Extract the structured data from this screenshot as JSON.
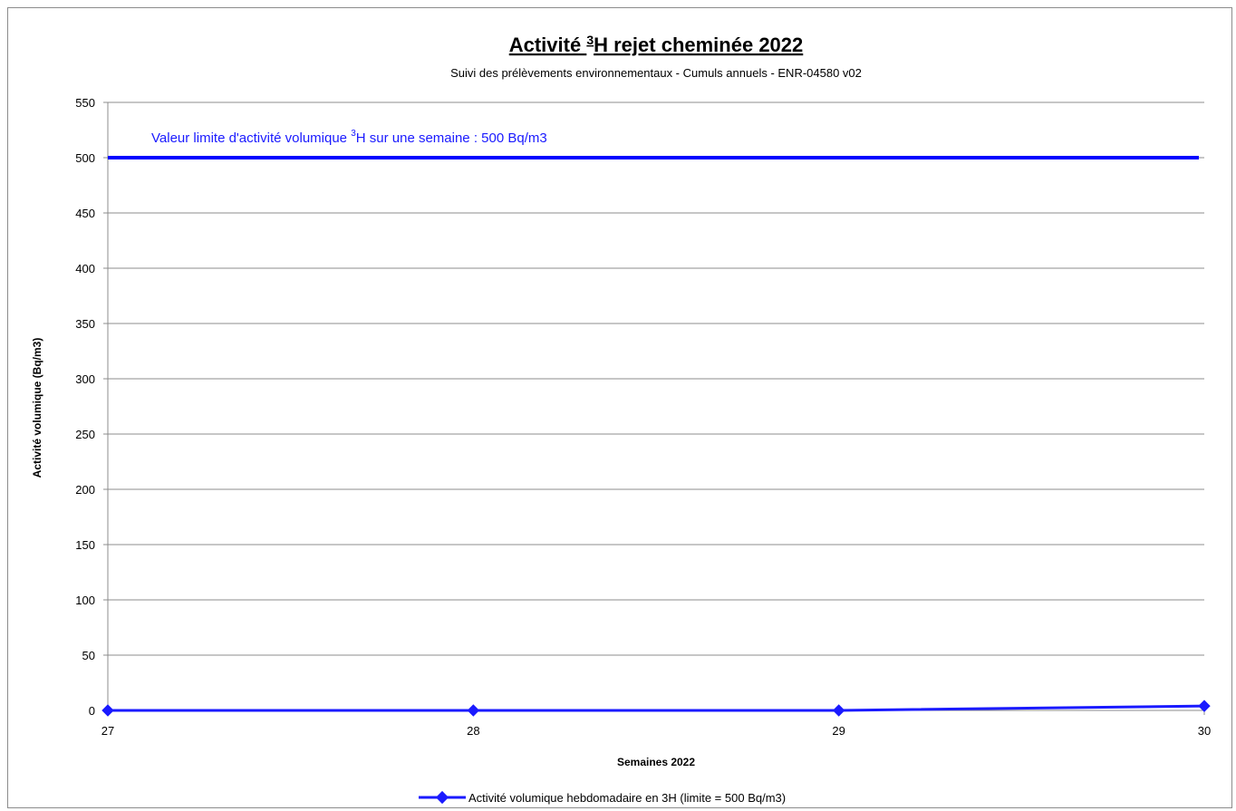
{
  "chart_data": {
    "type": "line",
    "title_main": "Activité ",
    "title_sup": "3",
    "title_rest": "H rejet cheminée 2022",
    "subtitle": "Suivi des prélèvements environnementaux - Cumuls annuels - ENR-04580 v02",
    "xlabel": "Semaines 2022",
    "ylabel": "Activité volumique (Bq/m3)",
    "xlim": [
      27,
      30
    ],
    "ylim": [
      0,
      550
    ],
    "x_ticks": [
      "27",
      "28",
      "29",
      "30"
    ],
    "y_ticks": [
      "0",
      "50",
      "100",
      "150",
      "200",
      "250",
      "300",
      "350",
      "400",
      "450",
      "500",
      "550"
    ],
    "grid": true,
    "limit_line": {
      "value": 500,
      "label_pre": "Valeur limite d'activité volumique ",
      "label_sup": "3",
      "label_post": "H  sur une semaine : 500 Bq/m3",
      "color": "#0000ff"
    },
    "series": [
      {
        "name": "Activité volumique hebdomadaire en 3H  (limite = 500 Bq/m3)",
        "x": [
          27,
          28,
          29,
          30
        ],
        "values": [
          0,
          0,
          0,
          4
        ],
        "color": "#1a1aff",
        "marker": "diamond"
      }
    ],
    "legend": "bottom"
  }
}
